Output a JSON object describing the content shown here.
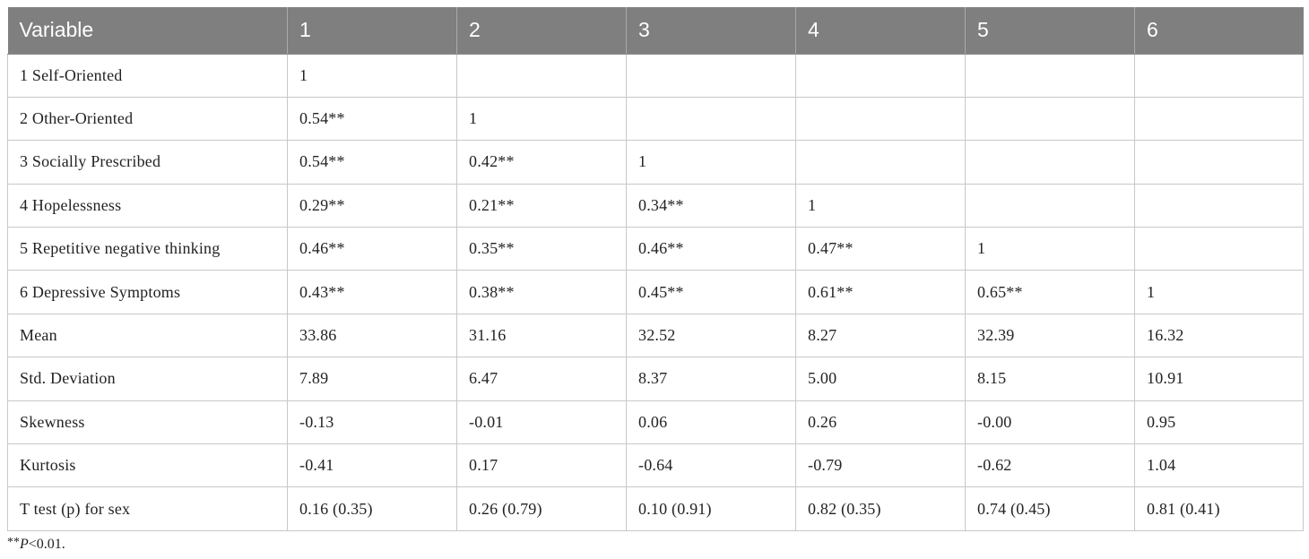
{
  "table": {
    "headers": [
      "Variable",
      "1",
      "2",
      "3",
      "4",
      "5",
      "6"
    ],
    "rows": [
      [
        "1 Self-Oriented",
        "1",
        "",
        "",
        "",
        "",
        ""
      ],
      [
        "2 Other-Oriented",
        "0.54**",
        "1",
        "",
        "",
        "",
        ""
      ],
      [
        "3 Socially Prescribed",
        "0.54**",
        "0.42**",
        "1",
        "",
        "",
        ""
      ],
      [
        "4 Hopelessness",
        "0.29**",
        "0.21**",
        "0.34**",
        "1",
        "",
        ""
      ],
      [
        "5 Repetitive negative thinking",
        "0.46**",
        "0.35**",
        "0.46**",
        "0.47**",
        "1",
        ""
      ],
      [
        "6 Depressive Symptoms",
        "0.43**",
        "0.38**",
        "0.45**",
        "0.61**",
        "0.65**",
        "1"
      ],
      [
        "Mean",
        "33.86",
        "31.16",
        "32.52",
        "8.27",
        "32.39",
        "16.32"
      ],
      [
        "Std. Deviation",
        "7.89",
        "6.47",
        "8.37",
        "5.00",
        "8.15",
        "10.91"
      ],
      [
        "Skewness",
        "-0.13",
        "-0.01",
        "0.06",
        "0.26",
        "-0.00",
        "0.95"
      ],
      [
        "Kurtosis",
        "-0.41",
        "0.17",
        "-0.64",
        "-0.79",
        "-0.62",
        "1.04"
      ],
      [
        "T test (p) for sex",
        "0.16 (0.35)",
        "0.26 (0.79)",
        "0.10 (0.91)",
        "0.82 (0.35)",
        "0.74 (0.45)",
        "0.81 (0.41)"
      ]
    ]
  },
  "footnote": {
    "stars": "**",
    "p": "P",
    "rest": "<0.01."
  },
  "colors": {
    "header_bg": "#7f7f7f",
    "header_text": "#ffffff",
    "grid": "#c8c8c8",
    "body_text": "#222222"
  }
}
